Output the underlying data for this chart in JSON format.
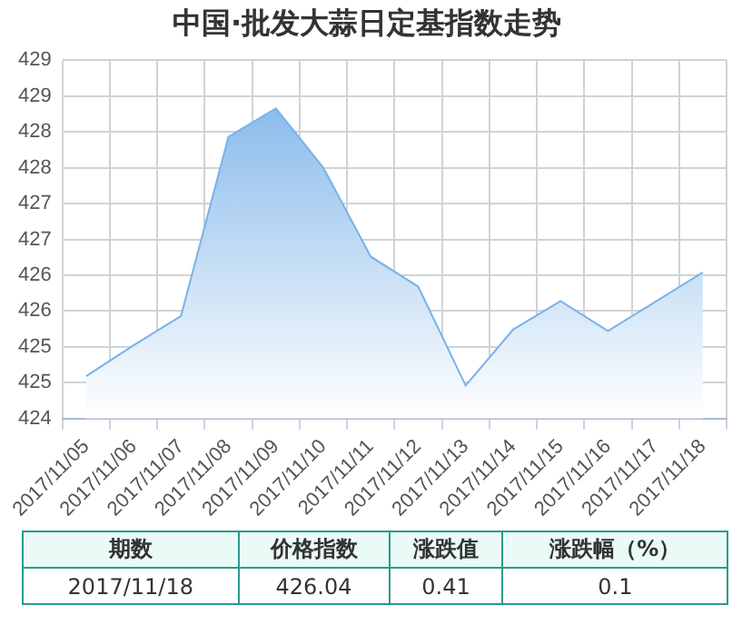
{
  "chart_data": {
    "type": "area",
    "title": "中国·批发大蒜日定基指数走势",
    "categories": [
      "2017/11/05",
      "2017/11/06",
      "2017/11/07",
      "2017/11/08",
      "2017/11/09",
      "2017/11/10",
      "2017/11/11",
      "2017/11/12",
      "2017/11/13",
      "2017/11/14",
      "2017/11/15",
      "2017/11/16",
      "2017/11/17",
      "2017/11/18"
    ],
    "series": [
      {
        "color": "#7ab2e8",
        "values": [
          424.59,
          425.02,
          425.43,
          427.93,
          428.33,
          427.5,
          426.26,
          425.84,
          424.46,
          425.24,
          425.64,
          425.22,
          425.63,
          426.04
        ]
      }
    ],
    "ylim": [
      424,
      429
    ],
    "yticks": [
      424,
      {
        "value": 424.5,
        "label": "425"
      },
      425,
      {
        "value": 425.5,
        "label": "426"
      },
      426,
      {
        "value": 426.5,
        "label": "427"
      },
      427,
      {
        "value": 427.5,
        "label": "428"
      },
      428,
      {
        "value": 428.5,
        "label": "429"
      },
      429
    ],
    "grid": true,
    "legend": false,
    "marker": "none",
    "line_style": "solid",
    "annotations": [
      "期数",
      "价格指数",
      "涨跌值",
      "涨跌幅（%）",
      "2017/11/18",
      "426.04",
      "0.41",
      "0.1"
    ]
  }
}
